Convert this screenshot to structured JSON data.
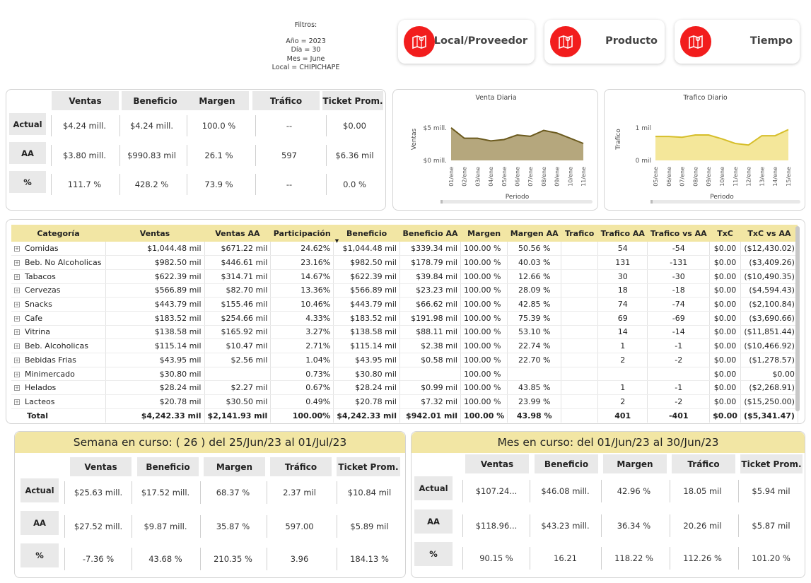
{
  "filters": {
    "title": "Filtros:",
    "lines": [
      "Año = 2023",
      "Día = 30",
      "Mes = June",
      "Local = CHIPICHAPE"
    ]
  },
  "nav": [
    {
      "label": "Local/Proveedor",
      "icon": "map-icon"
    },
    {
      "label": "Producto",
      "icon": "map-icon"
    },
    {
      "label": "Tiempo",
      "icon": "map-icon"
    }
  ],
  "colors": {
    "accent_red": "#f21d1d",
    "header_yellow": "#f2e6a4",
    "venta_fill": "#b5a77d",
    "venta_line": "#6b5a1e",
    "trafico_fill": "#f4e79a",
    "trafico_line": "#d6be2a"
  },
  "kpi_top": {
    "headers": [
      "Ventas",
      "Beneficio",
      "Margen",
      "Tráfico",
      "Ticket Prom."
    ],
    "rows": [
      {
        "label": "Actual",
        "values": [
          "$4.24 mill.",
          "$4.24 mill.",
          "100.0 %",
          "--",
          "$0.00"
        ]
      },
      {
        "label": "AA",
        "values": [
          "$3.80 mill.",
          "$990.83 mil",
          "26.1 %",
          "597",
          "$6.36 mil"
        ]
      },
      {
        "label": "%",
        "values": [
          "111.7 %",
          "428.2 %",
          "73.9 %",
          "--",
          "0.0 %"
        ]
      }
    ]
  },
  "venta_diaria": {
    "title": "Venta Diaria",
    "ylabel": "Ventas",
    "xlabel": "Periodo",
    "yticks": [
      "$5 mill.",
      "$0 mill."
    ],
    "chart_data": {
      "type": "area",
      "categories": [
        "01/ene",
        "02/ene",
        "03/ene",
        "04/ene",
        "05/ene",
        "06/ene",
        "07/ene",
        "08/ene",
        "09/ene",
        "10/ene",
        "11/ene"
      ],
      "values": [
        5.0,
        3.4,
        3.4,
        3.0,
        3.2,
        3.9,
        3.7,
        4.6,
        4.2,
        3.4,
        2.6
      ],
      "ylim": [
        0,
        6.5
      ]
    }
  },
  "trafico_diario": {
    "title": "Trafico Diario",
    "ylabel": "Trafico",
    "xlabel": "Periodo",
    "yticks": [
      "1 mil",
      "0 mil"
    ],
    "chart_data": {
      "type": "area",
      "categories": [
        "05/ene",
        "06/ene",
        "07/ene",
        "08/ene",
        "09/ene",
        "10/ene",
        "11/ene",
        "12/ene",
        "13/ene",
        "14/ene",
        "15/ene"
      ],
      "values": [
        0.62,
        0.62,
        0.6,
        0.66,
        0.66,
        0.56,
        0.44,
        0.4,
        0.64,
        0.64,
        0.8
      ],
      "ylim": [
        0,
        1.1
      ]
    }
  },
  "table": {
    "headers": [
      "Categoría",
      "Ventas",
      "Ventas AA",
      "Participación",
      "Beneficio",
      "Beneficio AA",
      "Margen",
      "Margen AA",
      "Trafico",
      "Trafico AA",
      "Trafico vs AA",
      "TxC",
      "TxC vs AA"
    ],
    "rows": [
      [
        "Comidas",
        "$1,044.48 mil",
        "$671.22 mil",
        "24.62%",
        "$1,044.48 mil",
        "$339.34 mil",
        "100.00 %",
        "50.56 %",
        "",
        "54",
        "-54",
        "$0.00",
        "($12,430.02)"
      ],
      [
        "Beb. No Alcoholicas",
        "$982.50 mil",
        "$446.61 mil",
        "23.16%",
        "$982.50 mil",
        "$178.79 mil",
        "100.00 %",
        "40.03 %",
        "",
        "131",
        "-131",
        "$0.00",
        "($3,409.26)"
      ],
      [
        "Tabacos",
        "$622.39 mil",
        "$314.71 mil",
        "14.67%",
        "$622.39 mil",
        "$39.84 mil",
        "100.00 %",
        "12.66 %",
        "",
        "30",
        "-30",
        "$0.00",
        "($10,490.35)"
      ],
      [
        "Cervezas",
        "$566.89 mil",
        "$82.70 mil",
        "13.36%",
        "$566.89 mil",
        "$23.23 mil",
        "100.00 %",
        "28.09 %",
        "",
        "18",
        "-18",
        "$0.00",
        "($4,594.43)"
      ],
      [
        "Snacks",
        "$443.79 mil",
        "$155.46 mil",
        "10.46%",
        "$443.79 mil",
        "$66.62 mil",
        "100.00 %",
        "42.85 %",
        "",
        "74",
        "-74",
        "$0.00",
        "($2,100.84)"
      ],
      [
        "Cafe",
        "$183.52 mil",
        "$254.66 mil",
        "4.33%",
        "$183.52 mil",
        "$191.98 mil",
        "100.00 %",
        "75.39 %",
        "",
        "69",
        "-69",
        "$0.00",
        "($3,690.66)"
      ],
      [
        "Vitrina",
        "$138.58 mil",
        "$165.92 mil",
        "3.27%",
        "$138.58 mil",
        "$88.11 mil",
        "100.00 %",
        "53.10 %",
        "",
        "14",
        "-14",
        "$0.00",
        "($11,851.44)"
      ],
      [
        "Beb. Alcoholicas",
        "$115.14 mil",
        "$10.47 mil",
        "2.71%",
        "$115.14 mil",
        "$2.38 mil",
        "100.00 %",
        "22.74 %",
        "",
        "1",
        "-1",
        "$0.00",
        "($10,466.92)"
      ],
      [
        "Bebidas Frias",
        "$43.95 mil",
        "$2.56 mil",
        "1.04%",
        "$43.95 mil",
        "$0.58 mil",
        "100.00 %",
        "22.70 %",
        "",
        "2",
        "-2",
        "$0.00",
        "($1,278.57)"
      ],
      [
        "Minimercado",
        "$30.80 mil",
        "",
        "0.73%",
        "$30.80 mil",
        "",
        "100.00 %",
        "",
        "",
        "",
        "",
        "$0.00",
        "$0.00"
      ],
      [
        "Helados",
        "$28.24 mil",
        "$2.27 mil",
        "0.67%",
        "$28.24 mil",
        "$0.99 mil",
        "100.00 %",
        "43.85 %",
        "",
        "1",
        "-1",
        "$0.00",
        "($2,268.91)"
      ],
      [
        "Lacteos",
        "$20.78 mil",
        "$30.50 mil",
        "0.49%",
        "$20.78 mil",
        "$7.32 mil",
        "100.00 %",
        "23.99 %",
        "",
        "2",
        "-2",
        "$0.00",
        "($15,250.00)"
      ]
    ],
    "total": [
      "Total",
      "$4,242.33 mil",
      "$2,141.93 mil",
      "100.00%",
      "$4,242.33 mil",
      "$942.01 mil",
      "100.00 %",
      "43.98 %",
      "",
      "401",
      "-401",
      "$0.00",
      "($5,341.47)"
    ]
  },
  "semana": {
    "title": "Semana en curso: ( 26 )  del 25/Jun/23 al 01/Jul/23",
    "headers": [
      "Ventas",
      "Beneficio",
      "Margen",
      "Tráfico",
      "Ticket Prom."
    ],
    "rows": [
      {
        "label": "Actual",
        "values": [
          "$25.63 mill.",
          "$17.52 mill.",
          "68.37 %",
          "2.37 mil",
          "$10.84 mil"
        ]
      },
      {
        "label": "AA",
        "values": [
          "$27.52 mill.",
          "$9.87 mill.",
          "35.87 %",
          "597.00",
          "$5.89 mil"
        ]
      },
      {
        "label": "%",
        "values": [
          "-7.36 %",
          "43.68 %",
          "210.35 %",
          "3.96",
          "184.13 %"
        ]
      }
    ]
  },
  "mes": {
    "title": "Mes en curso: del 01/Jun/23 al 30/Jun/23",
    "headers": [
      "Ventas",
      "Beneficio",
      "Margen",
      "Tráfico",
      "Ticket Prom."
    ],
    "rows": [
      {
        "label": "Actual",
        "values": [
          "$107.24...",
          "$46.08 mill.",
          "42.96 %",
          "18.05 mil",
          "$5.94 mil"
        ]
      },
      {
        "label": "AA",
        "values": [
          "$118.96...",
          "$43.23 mill.",
          "36.34 %",
          "20.26 mil",
          "$5.87 mil"
        ]
      },
      {
        "label": "%",
        "values": [
          "90.15 %",
          "16.21",
          "118.22 %",
          "112.26 %",
          "101.20 %"
        ]
      }
    ]
  }
}
